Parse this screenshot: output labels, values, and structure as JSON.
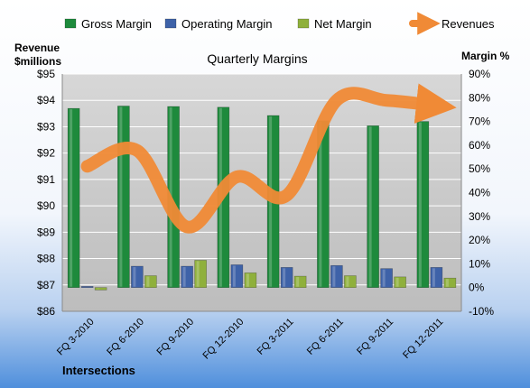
{
  "chart_data": {
    "type": "bar",
    "title": "Quarterly Margins",
    "y_left_label": [
      "Revenue",
      "$millions"
    ],
    "y_right_label": "Margin %",
    "footer_label": "Intersections",
    "categories": [
      "FQ 3-2010",
      "FQ 6-2010",
      "FQ 9-2010",
      "FQ 12-2010",
      "FQ 3-2011",
      "FQ 6-2011",
      "FQ 9-2011",
      "FQ 12-2011"
    ],
    "y_left_ticks": [
      "$86",
      "$87",
      "$88",
      "$89",
      "$90",
      "$91",
      "$92",
      "$93",
      "$94",
      "$95"
    ],
    "y_right_ticks": [
      "-10%",
      "0%",
      "10%",
      "20%",
      "30%",
      "40%",
      "50%",
      "60%",
      "70%",
      "80%",
      "90%"
    ],
    "ylim_left": [
      86,
      95
    ],
    "ylim_right": [
      -10,
      90
    ],
    "grid": true,
    "legend_position": "top",
    "series": [
      {
        "name": "Gross Margin",
        "axis": "right",
        "kind": "bar",
        "color": "#1e8a3c",
        "values": [
          75.5,
          76.5,
          76.3,
          76.0,
          72.5,
          70.3,
          68.2,
          70.0
        ]
      },
      {
        "name": "Operating Margin",
        "axis": "right",
        "kind": "bar",
        "color": "#3e62a8",
        "values": [
          0.5,
          9.0,
          9.0,
          9.6,
          8.5,
          9.3,
          8.0,
          8.5
        ]
      },
      {
        "name": "Net Margin",
        "axis": "right",
        "kind": "bar",
        "color": "#8fb03c",
        "values": [
          -1.0,
          5.0,
          11.5,
          6.2,
          4.8,
          5.0,
          4.5,
          4.0
        ]
      },
      {
        "name": "Revenues",
        "axis": "left",
        "kind": "line",
        "color": "#f08a36",
        "values": [
          91.5,
          92.1,
          89.2,
          91.1,
          90.4,
          94.0,
          94.0,
          93.8
        ]
      }
    ]
  }
}
